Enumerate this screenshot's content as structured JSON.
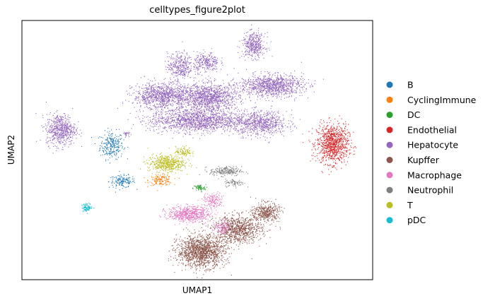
{
  "chart_data": {
    "type": "scatter",
    "title": "celltypes_figure2plot",
    "xlabel": "UMAP1",
    "ylabel": "UMAP2",
    "xlim": [
      0,
      100
    ],
    "ylim": [
      0,
      100
    ],
    "grid": false,
    "ticks": false,
    "legend_position": "right",
    "series": [
      {
        "name": "B",
        "color": "#1f77b4",
        "clusters": [
          {
            "x": 25.5,
            "y": 52,
            "sx": 2.2,
            "sy": 3.5,
            "n": 260
          },
          {
            "x": 28.5,
            "y": 38,
            "sx": 2.5,
            "sy": 1.6,
            "n": 150
          }
        ]
      },
      {
        "name": "CyclingImmune",
        "color": "#ff7f0e",
        "clusters": [
          {
            "x": 39.5,
            "y": 38.5,
            "sx": 2.2,
            "sy": 1.3,
            "n": 150
          }
        ]
      },
      {
        "name": "DC",
        "color": "#2ca02c",
        "clusters": [
          {
            "x": 50.5,
            "y": 35.5,
            "sx": 1.2,
            "sy": 0.9,
            "n": 70
          }
        ]
      },
      {
        "name": "Endothelial",
        "color": "#d62728",
        "clusters": [
          {
            "x": 88.5,
            "y": 52.5,
            "sx": 3.0,
            "sy": 5.0,
            "n": 950
          }
        ]
      },
      {
        "name": "Hepatocyte",
        "color": "#9467bd",
        "clusters": [
          {
            "x": 11,
            "y": 58,
            "sx": 2.8,
            "sy": 4.0,
            "n": 600
          },
          {
            "x": 29.5,
            "y": 56.5,
            "sx": 0.6,
            "sy": 0.6,
            "n": 25
          },
          {
            "x": 45,
            "y": 82.5,
            "sx": 2.4,
            "sy": 3.5,
            "n": 350
          },
          {
            "x": 52.5,
            "y": 84,
            "sx": 2.4,
            "sy": 2.6,
            "n": 260
          },
          {
            "x": 66,
            "y": 90.5,
            "sx": 2.2,
            "sy": 3.2,
            "n": 400
          },
          {
            "x": 40,
            "y": 71,
            "sx": 5.5,
            "sy": 3.3,
            "n": 1000
          },
          {
            "x": 53.5,
            "y": 70.5,
            "sx": 5.5,
            "sy": 3.5,
            "n": 1100
          },
          {
            "x": 71,
            "y": 75,
            "sx": 6.0,
            "sy": 2.8,
            "n": 1000
          },
          {
            "x": 50,
            "y": 61.5,
            "sx": 9.0,
            "sy": 3.0,
            "n": 1400
          },
          {
            "x": 68,
            "y": 60.5,
            "sx": 5.0,
            "sy": 3.2,
            "n": 700
          }
        ]
      },
      {
        "name": "Kupffer",
        "color": "#8c564b",
        "clusters": [
          {
            "x": 51,
            "y": 11,
            "sx": 4.5,
            "sy": 4.0,
            "n": 1400
          },
          {
            "x": 61.5,
            "y": 19.5,
            "sx": 4.5,
            "sy": 3.5,
            "n": 900
          },
          {
            "x": 69.5,
            "y": 26,
            "sx": 2.5,
            "sy": 2.5,
            "n": 400
          }
        ]
      },
      {
        "name": "Macrophage",
        "color": "#e377c2",
        "clusters": [
          {
            "x": 47.5,
            "y": 25.5,
            "sx": 4.0,
            "sy": 2.0,
            "n": 600
          },
          {
            "x": 54.5,
            "y": 30.5,
            "sx": 2.0,
            "sy": 2.0,
            "n": 150
          },
          {
            "x": 57,
            "y": 20,
            "sx": 1.8,
            "sy": 2.0,
            "n": 120
          }
        ]
      },
      {
        "name": "Neutrophil",
        "color": "#7f7f7f",
        "clusters": [
          {
            "x": 58,
            "y": 42,
            "sx": 3.0,
            "sy": 1.2,
            "n": 220
          },
          {
            "x": 60.5,
            "y": 37.5,
            "sx": 1.8,
            "sy": 1.0,
            "n": 80
          }
        ]
      },
      {
        "name": "T",
        "color": "#bcbd22",
        "clusters": [
          {
            "x": 41,
            "y": 45,
            "sx": 3.5,
            "sy": 2.2,
            "n": 500
          },
          {
            "x": 46,
            "y": 49.5,
            "sx": 1.5,
            "sy": 1.3,
            "n": 100
          }
        ]
      },
      {
        "name": "pDC",
        "color": "#17becf",
        "clusters": [
          {
            "x": 18.5,
            "y": 28,
            "sx": 1.0,
            "sy": 1.0,
            "n": 90
          }
        ]
      }
    ]
  }
}
